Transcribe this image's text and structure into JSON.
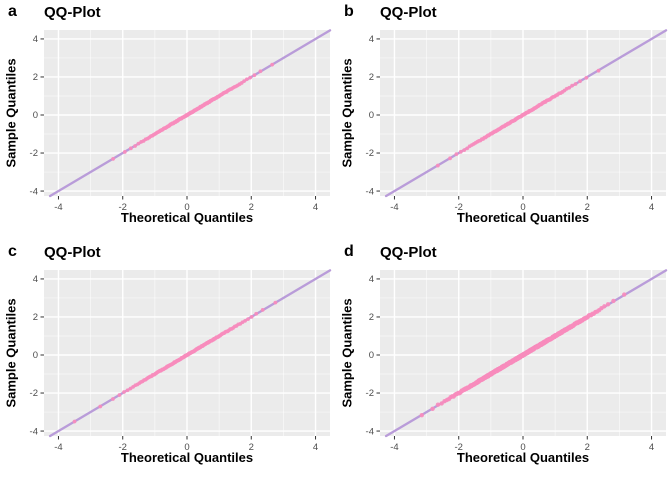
{
  "figure": {
    "background": "#FFFFFF",
    "grid": {
      "rows": 2,
      "cols": 2
    }
  },
  "colors": {
    "panel_bg": "#EBEBEB",
    "grid_major": "#FFFFFF",
    "grid_minor": "#FFFFFF",
    "reference_line": "#B99CD9",
    "points": "#F78CBD",
    "axis_text": "#4D4D4D",
    "title_text": "#000000",
    "tick_mark": "#333333"
  },
  "chart_data": [
    {
      "type": "scatter",
      "panel_label": "a",
      "title": "QQ-Plot",
      "xlabel": "Theoretical Quantiles",
      "ylabel": "Sample Quantiles",
      "x_ticks": [
        -4,
        -2,
        0,
        2,
        4
      ],
      "y_ticks": [
        -4,
        -2,
        0,
        2,
        4
      ],
      "minor_ticks": [
        -3,
        -1,
        1,
        3
      ],
      "xlim": [
        -4.45,
        4.45
      ],
      "ylim": [
        -4.26,
        4.47
      ],
      "grid": "on",
      "reference_line": {
        "slope": 1,
        "intercept": 0
      },
      "points": {
        "distribution": "normal-quantiles-on-identity-line",
        "n": 130,
        "range": [
          -2.3,
          2.65
        ],
        "seed": 11,
        "jitter": 0.02,
        "radius": 1.9
      },
      "outliers": []
    },
    {
      "type": "scatter",
      "panel_label": "b",
      "title": "QQ-Plot",
      "xlabel": "Theoretical Quantiles",
      "ylabel": "Sample Quantiles",
      "x_ticks": [
        -4,
        -2,
        0,
        2,
        4
      ],
      "y_ticks": [
        -4,
        -2,
        0,
        2,
        4
      ],
      "minor_ticks": [
        -3,
        -1,
        1,
        3
      ],
      "xlim": [
        -4.45,
        4.45
      ],
      "ylim": [
        -4.26,
        4.47
      ],
      "grid": "on",
      "reference_line": {
        "slope": 1,
        "intercept": 0
      },
      "points": {
        "distribution": "normal-quantiles-on-identity-line",
        "n": 115,
        "range": [
          -2.65,
          2.35
        ],
        "seed": 22,
        "jitter": 0.02,
        "radius": 1.9
      },
      "outliers": []
    },
    {
      "type": "scatter",
      "panel_label": "c",
      "title": "QQ-Plot",
      "xlabel": "Theoretical Quantiles",
      "ylabel": "Sample Quantiles",
      "x_ticks": [
        -4,
        -2,
        0,
        2,
        4
      ],
      "y_ticks": [
        -4,
        -2,
        0,
        2,
        4
      ],
      "minor_ticks": [
        -3,
        -1,
        1,
        3
      ],
      "xlim": [
        -4.45,
        4.45
      ],
      "ylim": [
        -4.26,
        4.47
      ],
      "grid": "on",
      "reference_line": {
        "slope": 1,
        "intercept": 0
      },
      "points": {
        "distribution": "normal-quantiles-on-identity-line",
        "n": 140,
        "range": [
          -2.7,
          2.75
        ],
        "seed": 33,
        "jitter": 0.02,
        "radius": 1.9
      },
      "outliers": [
        -3.5
      ]
    },
    {
      "type": "scatter",
      "panel_label": "d",
      "title": "QQ-Plot",
      "xlabel": "Theoretical Quantiles",
      "ylabel": "Sample Quantiles",
      "x_ticks": [
        -4,
        -2,
        0,
        2,
        4
      ],
      "y_ticks": [
        -4,
        -2,
        0,
        2,
        4
      ],
      "minor_ticks": [
        -3,
        -1,
        1,
        3
      ],
      "xlim": [
        -4.45,
        4.45
      ],
      "ylim": [
        -4.26,
        4.47
      ],
      "grid": "on",
      "reference_line": {
        "slope": 1,
        "intercept": 0
      },
      "points": {
        "distribution": "normal-quantiles-on-identity-line",
        "n": 620,
        "range": [
          -3.15,
          3.15
        ],
        "seed": 44,
        "jitter": 0.035,
        "radius": 2.2
      },
      "outliers": []
    }
  ]
}
